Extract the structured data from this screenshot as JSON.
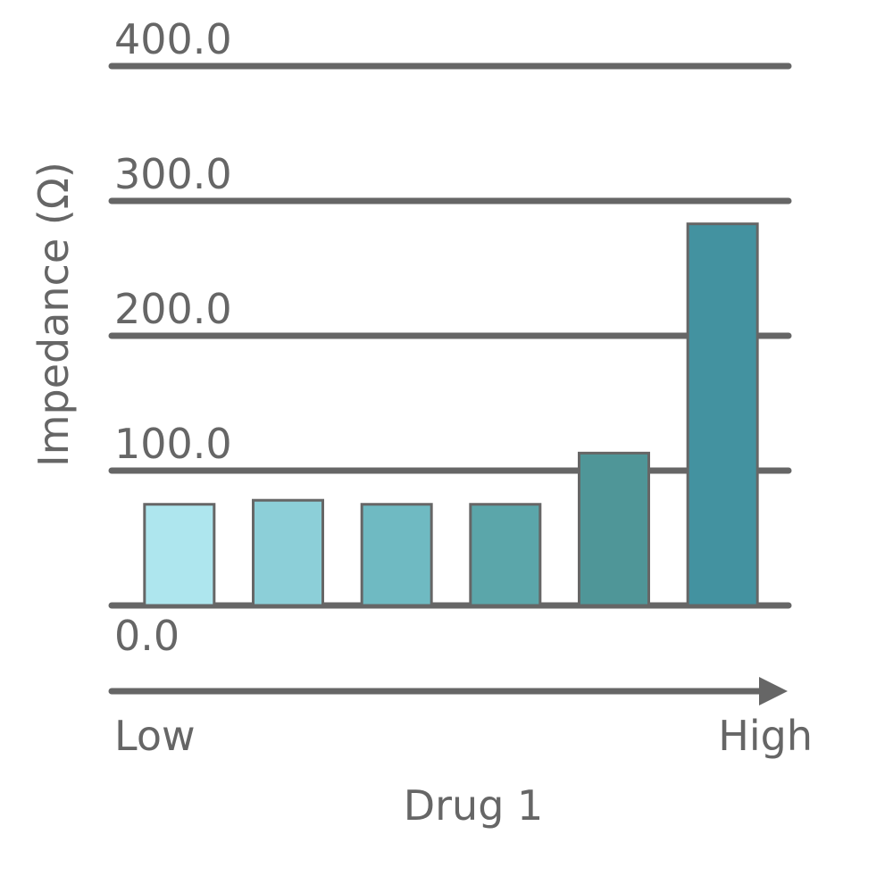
{
  "chart_data": {
    "type": "bar",
    "x_label": "Drug 1",
    "y_label": "Impedance (Ω)",
    "x_start_label": "Low",
    "x_end_label": "High",
    "categories": [
      null,
      null,
      null,
      null,
      null,
      null
    ],
    "values": [
      75,
      78,
      75,
      75,
      113,
      283
    ],
    "colors": [
      "#aee6ee",
      "#8ccfd8",
      "#6fbac2",
      "#5ba6aa",
      "#4f9698",
      "#4392a0"
    ],
    "ylim": [
      0,
      400
    ],
    "yticks": [
      {
        "value": 0,
        "label": "0.0"
      },
      {
        "value": 100,
        "label": "100.0"
      },
      {
        "value": 200,
        "label": "200.0"
      },
      {
        "value": 300,
        "label": "300.0"
      },
      {
        "value": 400,
        "label": "400.0"
      }
    ],
    "grid": true
  }
}
